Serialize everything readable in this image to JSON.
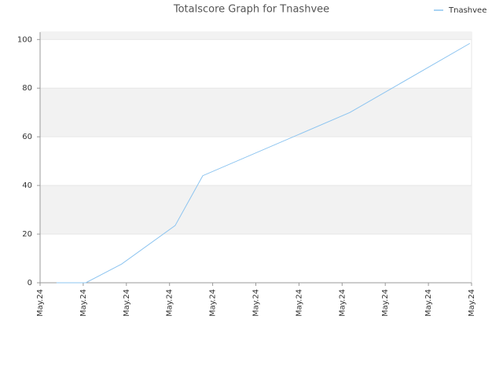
{
  "chart_data": {
    "type": "line",
    "title": "Totalscore Graph for Tnashvee",
    "x": [
      0.38,
      1.06,
      1.89,
      3.13,
      3.77,
      7.18,
      9.96
    ],
    "series": [
      {
        "name": "Tnashvee",
        "color": "#8cc4f0",
        "values": [
          0,
          0,
          7.7,
          23.5,
          44,
          70,
          98.4
        ]
      }
    ],
    "xlim": [
      0,
      10
    ],
    "xticks": [
      {
        "value": 0,
        "label": "May.24"
      },
      {
        "value": 1,
        "label": "May.24"
      },
      {
        "value": 2,
        "label": "May.24"
      },
      {
        "value": 3,
        "label": "May.24"
      },
      {
        "value": 4,
        "label": "May.24"
      },
      {
        "value": 5,
        "label": "May.24"
      },
      {
        "value": 6,
        "label": "May.24"
      },
      {
        "value": 7,
        "label": "May.24"
      },
      {
        "value": 8,
        "label": "May.24"
      },
      {
        "value": 9,
        "label": "May.24"
      },
      {
        "value": 10,
        "label": "May.24"
      }
    ],
    "ylim": [
      0,
      103
    ],
    "yticks": [
      0,
      20,
      40,
      60,
      80,
      100
    ],
    "band_color": "#f2f2f2",
    "legend": "top-right"
  }
}
